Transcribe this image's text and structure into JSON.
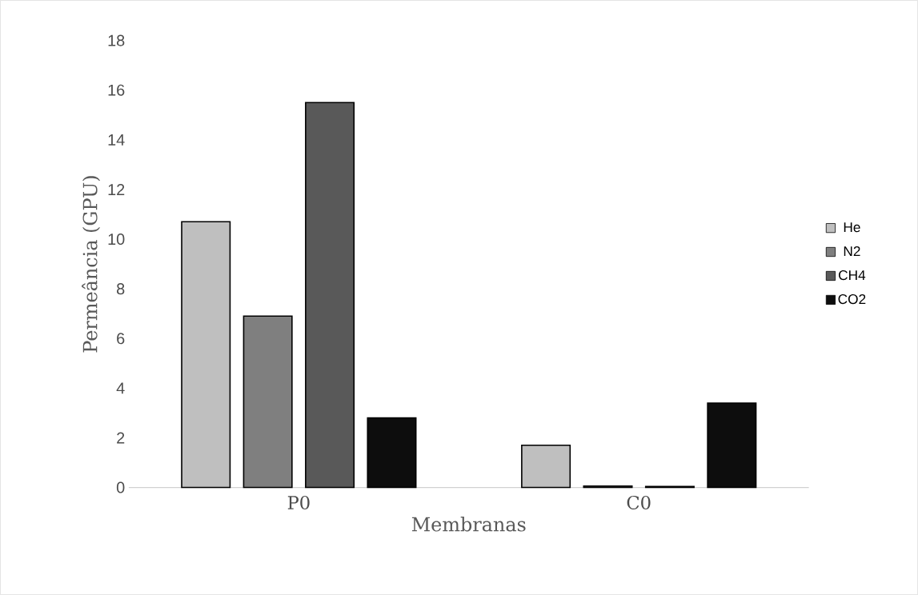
{
  "chart_data": {
    "type": "bar",
    "xlabel": "Membranas",
    "ylabel": "Permeância (GPU)",
    "categories": [
      "P0",
      "C0"
    ],
    "series": [
      {
        "name": "He",
        "color": "#bfbfbf",
        "values": [
          10.7,
          1.7
        ]
      },
      {
        "name": "N2",
        "color": "#7f7f7f",
        "values": [
          6.9,
          0.06
        ]
      },
      {
        "name": "CH4",
        "color": "#595959",
        "values": [
          15.5,
          0.04
        ]
      },
      {
        "name": "CO2",
        "color": "#0d0d0d",
        "values": [
          2.8,
          3.4
        ]
      }
    ],
    "ylim": [
      0,
      18
    ],
    "yticks": [
      0,
      2,
      4,
      6,
      8,
      10,
      12,
      14,
      16,
      18
    ],
    "legend": "right"
  }
}
